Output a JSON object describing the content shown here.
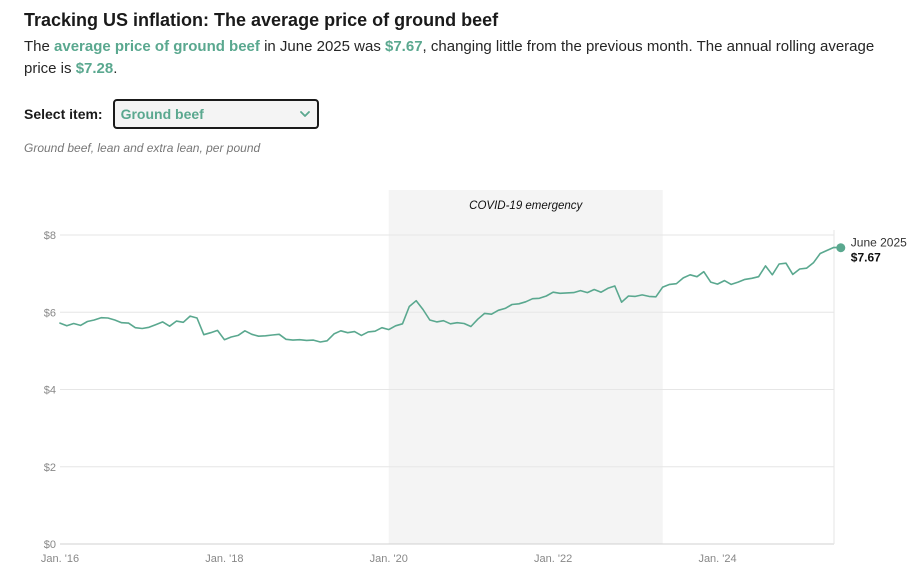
{
  "header": {
    "title": "Tracking US inflation: The average price of ground beef",
    "subtitle_part1": "The ",
    "subtitle_item": "average price of ground beef",
    "subtitle_part2": " in June 2025 was ",
    "subtitle_price": "$7.67",
    "subtitle_part3": ", changing little from the previous month. The annual rolling average price is ",
    "subtitle_avg": "$7.28",
    "subtitle_part4": "."
  },
  "selector": {
    "label": "Select item:",
    "selected": "Ground beef"
  },
  "description": "Ground beef, lean and extra lean, per pound",
  "colors": {
    "accent": "#5aa88f",
    "shade": "#f4f4f4",
    "grid": "#e6e6e6"
  },
  "chart_data": {
    "type": "line",
    "title": "Tracking US inflation: The average price of ground beef",
    "xlabel": "",
    "ylabel": "",
    "ylim": [
      0,
      8
    ],
    "xlim": [
      2016.0,
      2025.417
    ],
    "y_ticks": [
      {
        "value": 0,
        "label": "$0"
      },
      {
        "value": 2,
        "label": "$2"
      },
      {
        "value": 4,
        "label": "$4"
      },
      {
        "value": 6,
        "label": "$6"
      },
      {
        "value": 8,
        "label": "$8"
      }
    ],
    "x_ticks": [
      {
        "value": 2016,
        "label": "Jan. '16"
      },
      {
        "value": 2018,
        "label": "Jan. '18"
      },
      {
        "value": 2020,
        "label": "Jan. '20"
      },
      {
        "value": 2022,
        "label": "Jan. '22"
      },
      {
        "value": 2024,
        "label": "Jan. '24"
      }
    ],
    "shaded_region": {
      "start": 2020.0,
      "end": 2023.333,
      "label": "COVID-19 emergency"
    },
    "end_label": {
      "date": "June 2025",
      "value": "$7.67"
    },
    "series": [
      {
        "name": "Ground beef",
        "x_start": 2016.0,
        "x_step": 0.08333,
        "values": [
          5.72,
          5.65,
          5.71,
          5.66,
          5.76,
          5.8,
          5.86,
          5.85,
          5.8,
          5.73,
          5.72,
          5.6,
          5.58,
          5.61,
          5.68,
          5.75,
          5.64,
          5.77,
          5.74,
          5.9,
          5.85,
          5.42,
          5.47,
          5.53,
          5.29,
          5.36,
          5.4,
          5.52,
          5.43,
          5.38,
          5.39,
          5.41,
          5.43,
          5.3,
          5.28,
          5.29,
          5.27,
          5.28,
          5.23,
          5.26,
          5.44,
          5.52,
          5.47,
          5.5,
          5.4,
          5.49,
          5.51,
          5.6,
          5.55,
          5.65,
          5.7,
          6.15,
          6.3,
          6.07,
          5.8,
          5.75,
          5.78,
          5.7,
          5.73,
          5.71,
          5.63,
          5.82,
          5.97,
          5.95,
          6.05,
          6.1,
          6.2,
          6.22,
          6.27,
          6.35,
          6.36,
          6.42,
          6.52,
          6.49,
          6.5,
          6.51,
          6.56,
          6.51,
          6.59,
          6.52,
          6.62,
          6.68,
          6.26,
          6.42,
          6.41,
          6.45,
          6.41,
          6.4,
          6.65,
          6.72,
          6.74,
          6.89,
          6.97,
          6.92,
          7.05,
          6.78,
          6.73,
          6.82,
          6.72,
          6.78,
          6.85,
          6.88,
          6.92,
          7.2,
          6.97,
          7.25,
          7.27,
          6.98,
          7.12,
          7.14,
          7.28,
          7.52,
          7.6,
          7.68,
          7.67
        ]
      }
    ]
  }
}
